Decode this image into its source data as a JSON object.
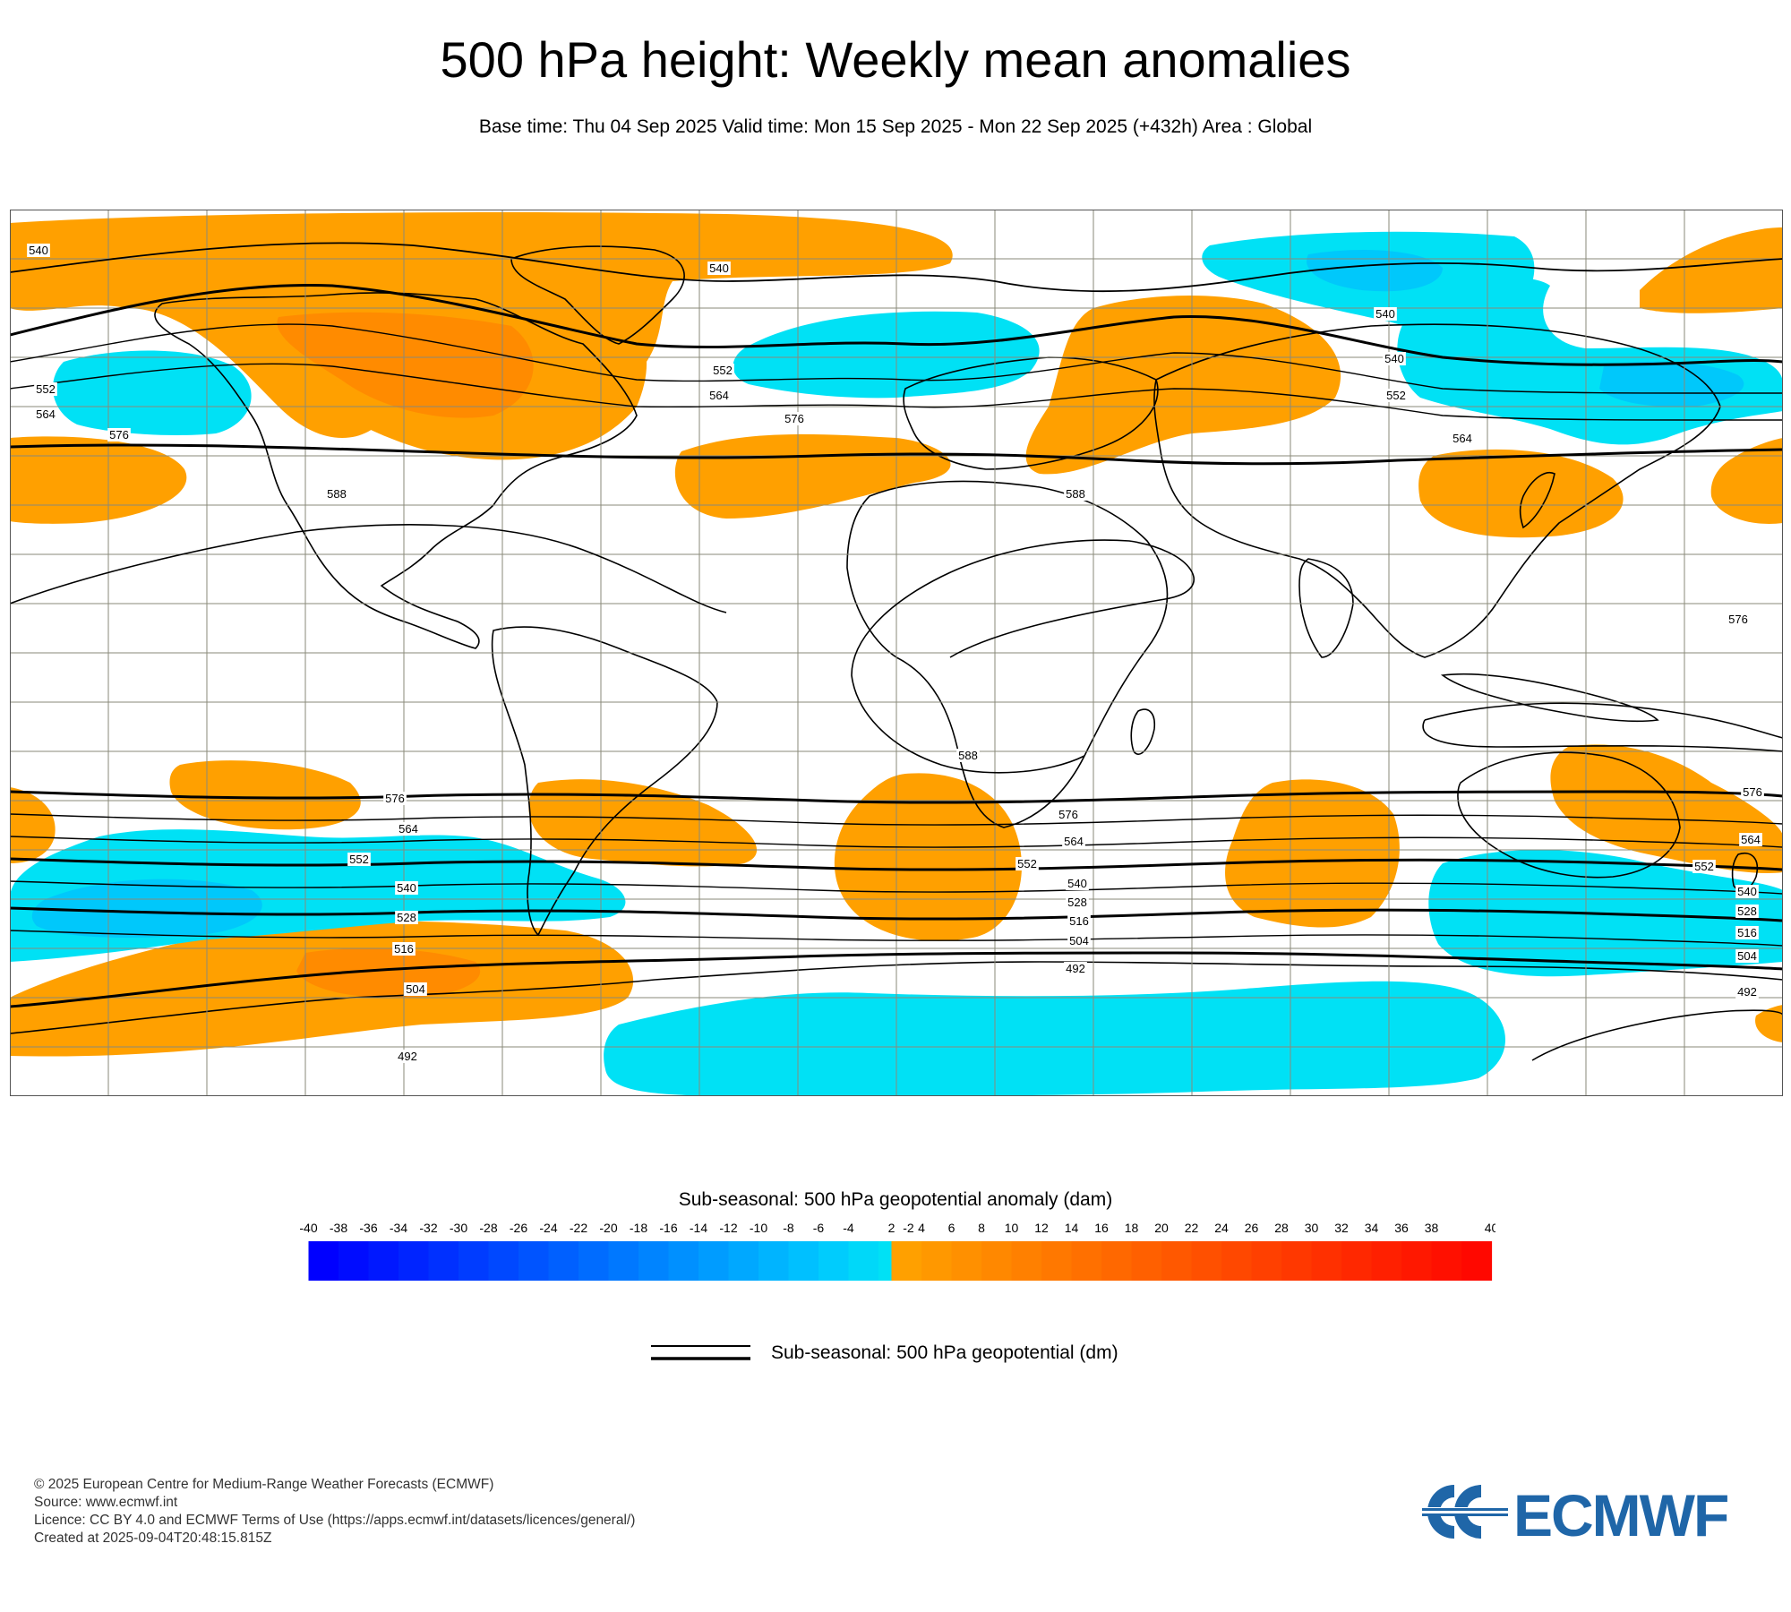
{
  "header": {
    "title": "500 hPa height: Weekly mean anomalies",
    "subtitle": "Base time: Thu 04 Sep 2025 Valid time: Mon 15 Sep 2025 - Mon 22 Sep 2025 (+432h) Area : Global"
  },
  "map": {
    "area": "Global",
    "contour_labels": [
      "540",
      "540",
      "552",
      "564",
      "576",
      "540",
      "552",
      "564",
      "576",
      "588",
      "540",
      "552",
      "564",
      "576",
      "588",
      "588",
      "576",
      "564",
      "552",
      "540",
      "528",
      "516",
      "504",
      "492",
      "576",
      "564",
      "552",
      "540",
      "528",
      "516",
      "504",
      "492",
      "576",
      "564",
      "552",
      "540",
      "528",
      "516",
      "504",
      "492"
    ],
    "colors": {
      "positive_anomaly": "#ffa000",
      "positive_strong": "#ff7a00",
      "negative_anomaly": "#00e1f5",
      "negative_strong": "#00b4ff",
      "contour": "#000000",
      "grid": "#8a8a7a"
    }
  },
  "colorbar": {
    "title": "Sub-seasonal: 500 hPa geopotential anomaly (dam)",
    "ticks": [
      "-40",
      "-38",
      "-36",
      "-34",
      "-32",
      "-30",
      "-28",
      "-26",
      "-24",
      "-22",
      "-20",
      "-18",
      "-16",
      "-14",
      "-12",
      "-10",
      "-8",
      "-6",
      "-4",
      "-2",
      "2",
      "4",
      "6",
      "8",
      "10",
      "12",
      "14",
      "16",
      "18",
      "20",
      "22",
      "24",
      "26",
      "28",
      "30",
      "32",
      "34",
      "36",
      "38",
      "40"
    ],
    "negative_colors": [
      "#0000ff",
      "#000cff",
      "#0018ff",
      "#0024ff",
      "#0030ff",
      "#003cff",
      "#0048ff",
      "#0054ff",
      "#0060ff",
      "#006cff",
      "#0078ff",
      "#0084ff",
      "#0090ff",
      "#009cff",
      "#00a8ff",
      "#00b4ff",
      "#00c0ff",
      "#00ccfd",
      "#00d8f9",
      "#00e1f5"
    ],
    "positive_colors": [
      "#ffa000",
      "#ff9800",
      "#ff9000",
      "#ff8800",
      "#ff8000",
      "#ff7800",
      "#ff7000",
      "#ff6800",
      "#ff6000",
      "#ff5800",
      "#ff5000",
      "#ff4800",
      "#ff4000",
      "#ff3800",
      "#ff3000",
      "#ff2800",
      "#ff2000",
      "#ff1800",
      "#ff1000",
      "#ff0800"
    ]
  },
  "legend": {
    "contour_label": "Sub-seasonal: 500 hPa geopotential (dm)"
  },
  "footer": {
    "line1": "© 2025 European Centre for Medium-Range Weather Forecasts (ECMWF)",
    "line2": "Source: www.ecmwf.int",
    "line3": "Licence: CC BY 4.0 and ECMWF Terms of Use (https://apps.ecmwf.int/datasets/licences/general/)",
    "line4": "Created at 2025-09-04T20:48:15.815Z"
  },
  "logo": {
    "text": "ECMWF",
    "color": "#1f66a8"
  }
}
